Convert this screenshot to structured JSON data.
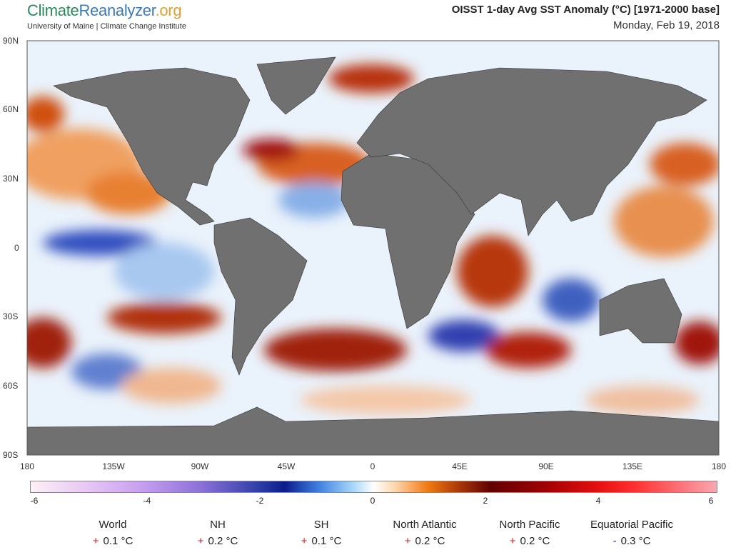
{
  "header": {
    "logo_climate": "Climate",
    "logo_reanalyzer": "Reanalyzer",
    "logo_org": ".org",
    "subtitle": "University of Maine | Climate Change Institute",
    "title": "OISST 1-day Avg SST Anomaly (°C) [1971-2000 base]",
    "date": "Monday, Feb 19, 2018"
  },
  "axes": {
    "lat": [
      "90N",
      "60N",
      "30N",
      "0",
      "30S",
      "60S",
      "90S"
    ],
    "lon": [
      "180",
      "135W",
      "90W",
      "45W",
      "0",
      "45E",
      "90E",
      "135E",
      "180"
    ]
  },
  "colorbar": {
    "ticks": [
      "-6",
      "-4",
      "-2",
      "0",
      "2",
      "4",
      "6"
    ],
    "range": [
      -6,
      6
    ],
    "units": "°C"
  },
  "stats": [
    {
      "label": "World",
      "sign": "+",
      "value": "0.1 °C"
    },
    {
      "label": "NH",
      "sign": "+",
      "value": "0.2 °C"
    },
    {
      "label": "SH",
      "sign": "+",
      "value": "0.1 °C"
    },
    {
      "label": "North Atlantic",
      "sign": "+",
      "value": "0.2 °C"
    },
    {
      "label": "North Pacific",
      "sign": "+",
      "value": "0.2 °C"
    },
    {
      "label": "Equatorial Pacific",
      "sign": "-",
      "value": "0.3 °C"
    }
  ],
  "colors": {
    "land": "#707070",
    "warm": "#c84010",
    "cold": "#2040b0"
  }
}
